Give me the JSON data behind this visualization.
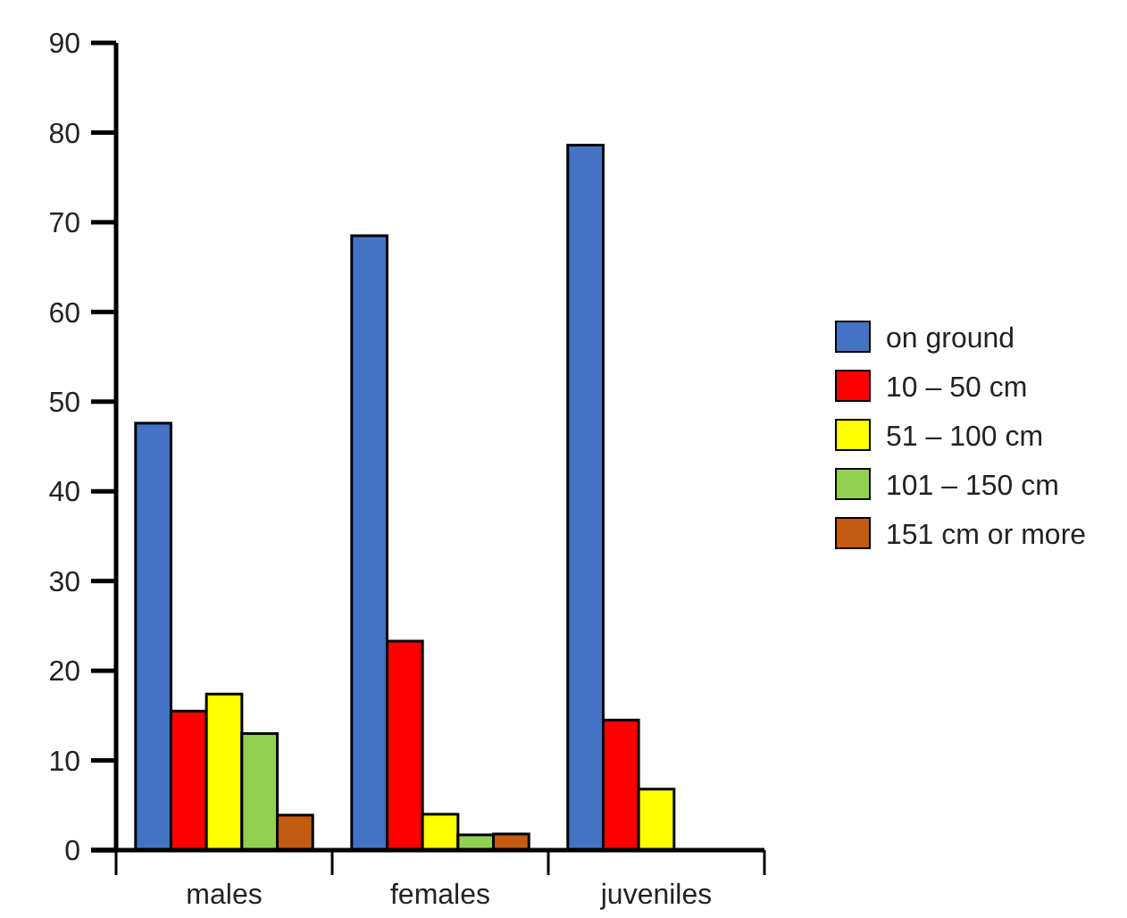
{
  "chart_data": {
    "type": "bar",
    "categories": [
      "males",
      "females",
      "juveniles"
    ],
    "series": [
      {
        "name": "on ground",
        "color": "#4472c4",
        "values": [
          47.6,
          68.5,
          78.6
        ]
      },
      {
        "name": "10 – 50 cm",
        "color": "#ff0000",
        "values": [
          15.5,
          23.3,
          14.5
        ]
      },
      {
        "name": "51 – 100 cm",
        "color": "#ffff00",
        "values": [
          17.4,
          4.0,
          6.8
        ]
      },
      {
        "name": "101 – 150 cm",
        "color": "#92d050",
        "values": [
          13.0,
          1.7,
          null
        ]
      },
      {
        "name": "151  cm or more",
        "color": "#c55a11",
        "values": [
          3.9,
          1.8,
          null
        ]
      }
    ],
    "ylim": [
      0,
      90
    ],
    "yticks": [
      0,
      10,
      20,
      30,
      40,
      50,
      60,
      70,
      80,
      90
    ],
    "grid": false,
    "legend": "right"
  }
}
